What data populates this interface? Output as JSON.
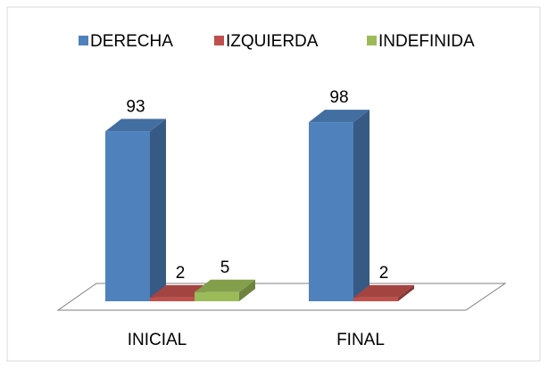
{
  "chart_data": {
    "type": "bar3d",
    "categories": [
      "INICIAL",
      "FINAL"
    ],
    "series": [
      {
        "name": "DERECHA",
        "color": "#4f81bd",
        "values": [
          93,
          98
        ]
      },
      {
        "name": "IZQUIERDA",
        "color": "#c0504d",
        "values": [
          2,
          2
        ]
      },
      {
        "name": "INDEFINIDA",
        "color": "#9bbb59",
        "values": [
          5,
          null
        ]
      }
    ],
    "legend": "top"
  }
}
